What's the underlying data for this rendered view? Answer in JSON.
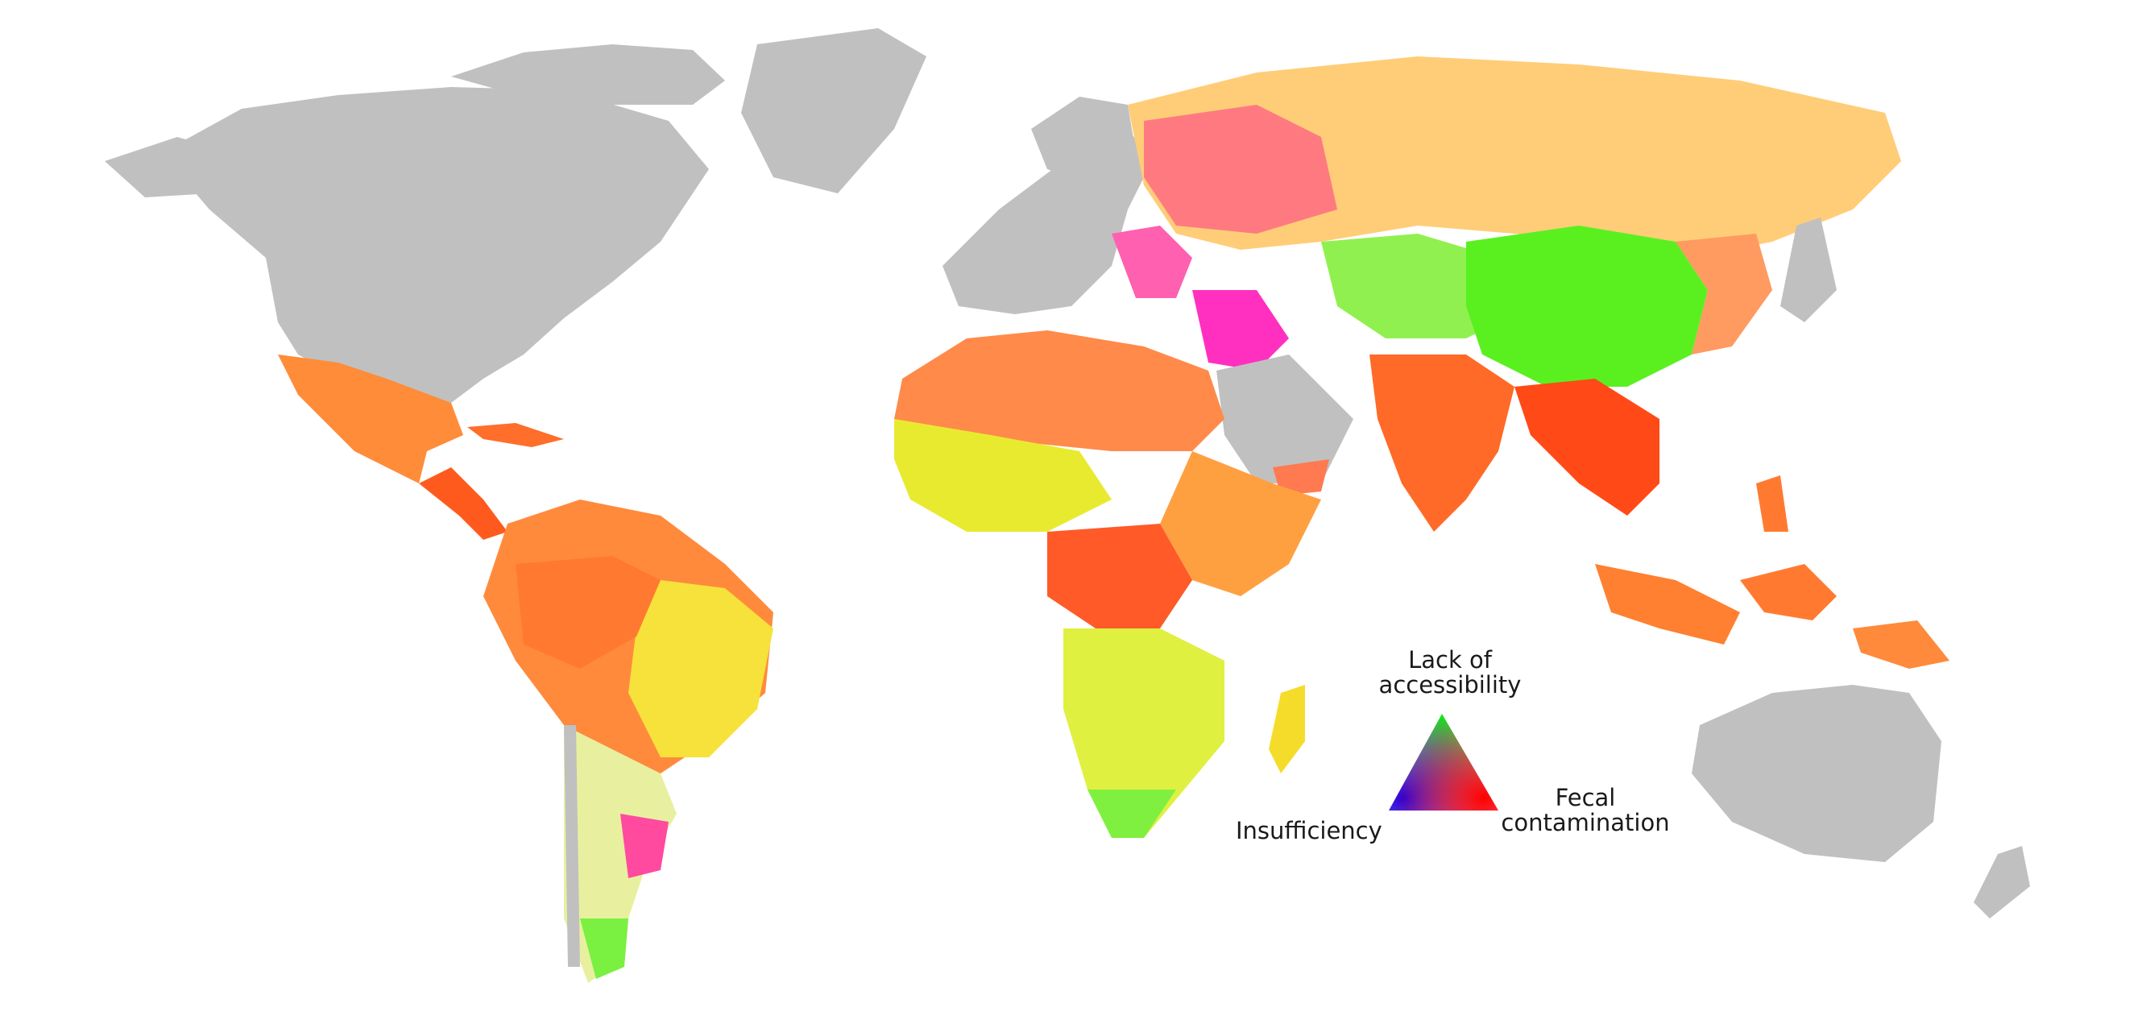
{
  "legend": {
    "top": [
      "Lack of",
      "accessibility"
    ],
    "left": "Insufficiency",
    "right": [
      "Fecal",
      "contamination"
    ]
  },
  "colors": {
    "no_data": "#c0c0c0",
    "lack_of_accessibility": "#00ff00",
    "insufficiency": "#0000ff",
    "fecal_contamination": "#ff0000"
  }
}
